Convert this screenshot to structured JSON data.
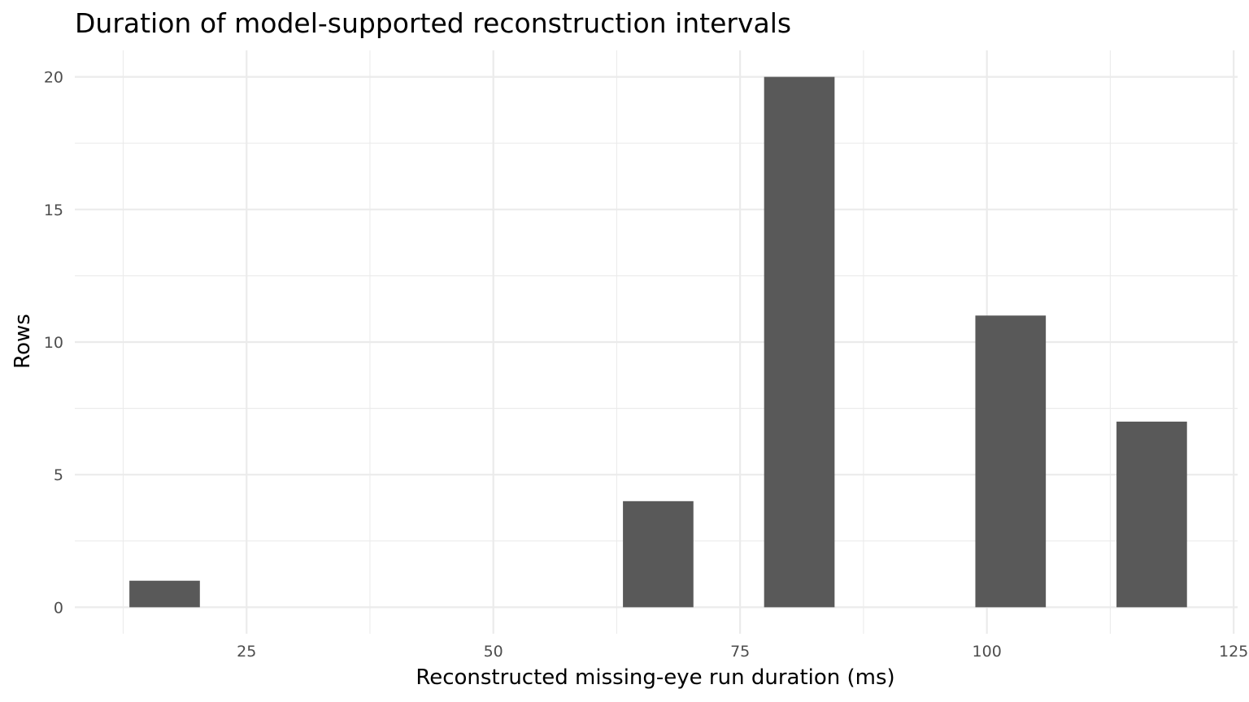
{
  "chart_data": {
    "type": "bar",
    "title": "Duration of model-supported reconstruction intervals",
    "xlabel": "Reconstructed missing-eye run duration (ms)",
    "ylabel": "Rows",
    "xlim": [
      7.6,
      125.4
    ],
    "ylim": [
      -1,
      21
    ],
    "x_ticks": [
      25,
      50,
      75,
      100,
      125
    ],
    "x_tick_labels": [
      "25",
      "50",
      "75",
      "100",
      "125"
    ],
    "y_ticks": [
      0,
      5,
      10,
      15,
      20
    ],
    "y_tick_labels": [
      "0",
      "5",
      "10",
      "15",
      "20"
    ],
    "bin_width": 7.14,
    "bins": [
      {
        "x": 16.7,
        "value": 1
      },
      {
        "x": 66.7,
        "value": 4
      },
      {
        "x": 81.0,
        "value": 20
      },
      {
        "x": 102.4,
        "value": 11
      },
      {
        "x": 116.7,
        "value": 7
      }
    ],
    "grid": true,
    "bar_color": "#595959",
    "legend": "none"
  }
}
